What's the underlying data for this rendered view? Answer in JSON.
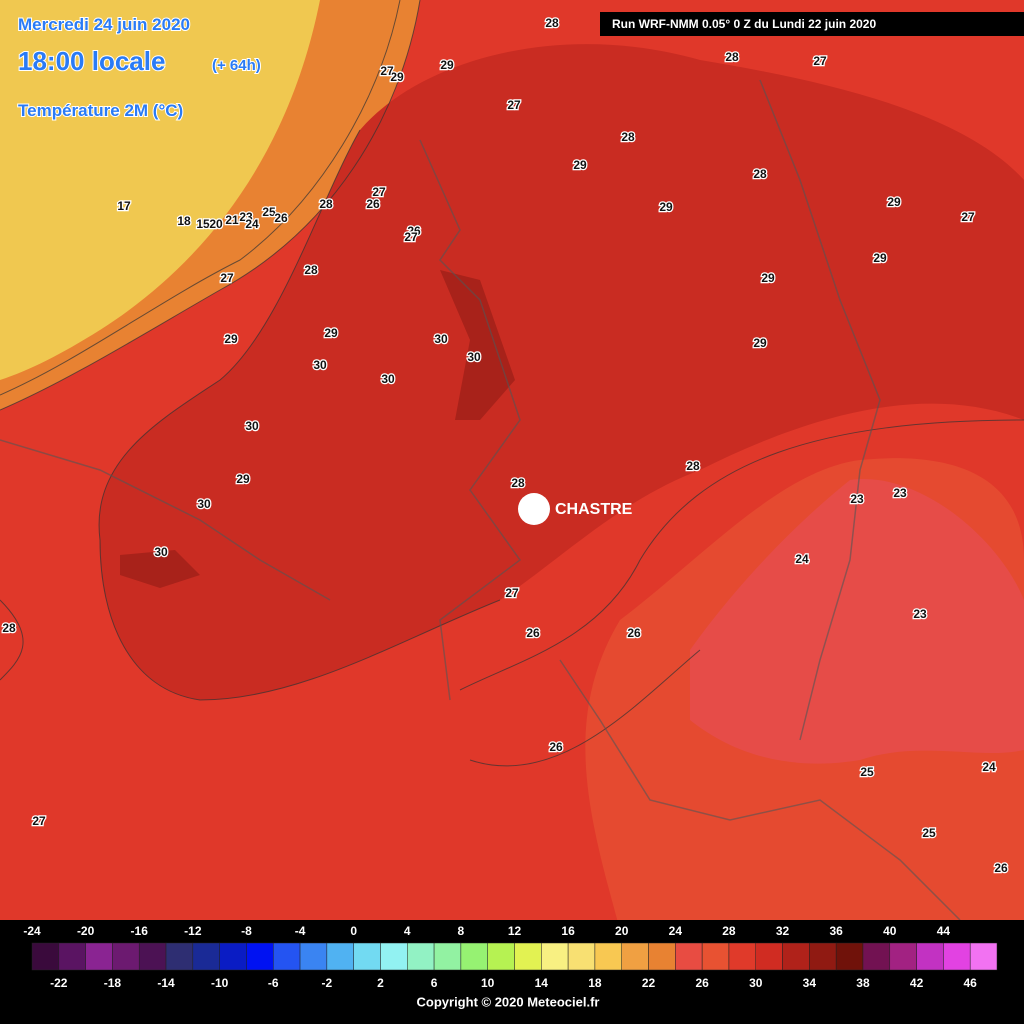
{
  "header": {
    "date": "Mercredi 24 juin 2020",
    "time": "18:00 locale",
    "lead": "(+ 64h)",
    "field": "Température 2M (°C)",
    "run": "Run WRF-NMM 0.05° 0 Z du Lundi 22 juin 2020"
  },
  "city": "CHASTRE",
  "contour_labels": [
    "28",
    "28",
    "27",
    "29",
    "27",
    "29",
    "27",
    "28",
    "29",
    "28",
    "29",
    "27",
    "17",
    "18",
    "15",
    "20",
    "21",
    "23",
    "24",
    "25",
    "26",
    "28",
    "26",
    "27",
    "26",
    "27",
    "28",
    "29",
    "29",
    "29",
    "27",
    "29",
    "30",
    "30",
    "30",
    "30",
    "30",
    "29",
    "30",
    "29",
    "29",
    "28",
    "28",
    "23",
    "23",
    "24",
    "23",
    "30",
    "28",
    "27",
    "26",
    "26",
    "26",
    "25",
    "24",
    "25",
    "27",
    "26",
    "26",
    "28"
  ],
  "colorbar": {
    "colors": [
      "#3a0a3c",
      "#5a1462",
      "#8a2492",
      "#6c1a70",
      "#4c1254",
      "#2e2e72",
      "#1a2a96",
      "#0a1cc4",
      "#0012f2",
      "#2454f2",
      "#3a84f2",
      "#50b2f2",
      "#72daf2",
      "#92f2f2",
      "#92f2c4",
      "#92f2a2",
      "#96f272",
      "#b6f252",
      "#e2f252",
      "#f8f082",
      "#f8e072",
      "#f8c852",
      "#f0a042",
      "#e88232",
      "#e84c42",
      "#e85232",
      "#e03a2a",
      "#d02c22",
      "#b0221a",
      "#901a12",
      "#70120a",
      "#721252",
      "#a22282",
      "#c232c2",
      "#e242e2",
      "#f272f2"
    ],
    "top_labels": [
      "-24",
      "-20",
      "-16",
      "-12",
      "-8",
      "-4",
      "0",
      "4",
      "8",
      "12",
      "16",
      "20",
      "24",
      "28",
      "32",
      "36",
      "40",
      "44"
    ],
    "bottom_labels": [
      "-22",
      "-18",
      "-14",
      "-10",
      "-6",
      "-2",
      "2",
      "6",
      "10",
      "14",
      "18",
      "22",
      "26",
      "30",
      "34",
      "38",
      "42",
      "46"
    ]
  },
  "copyright": "Copyright © 2020 Meteociel.fr"
}
